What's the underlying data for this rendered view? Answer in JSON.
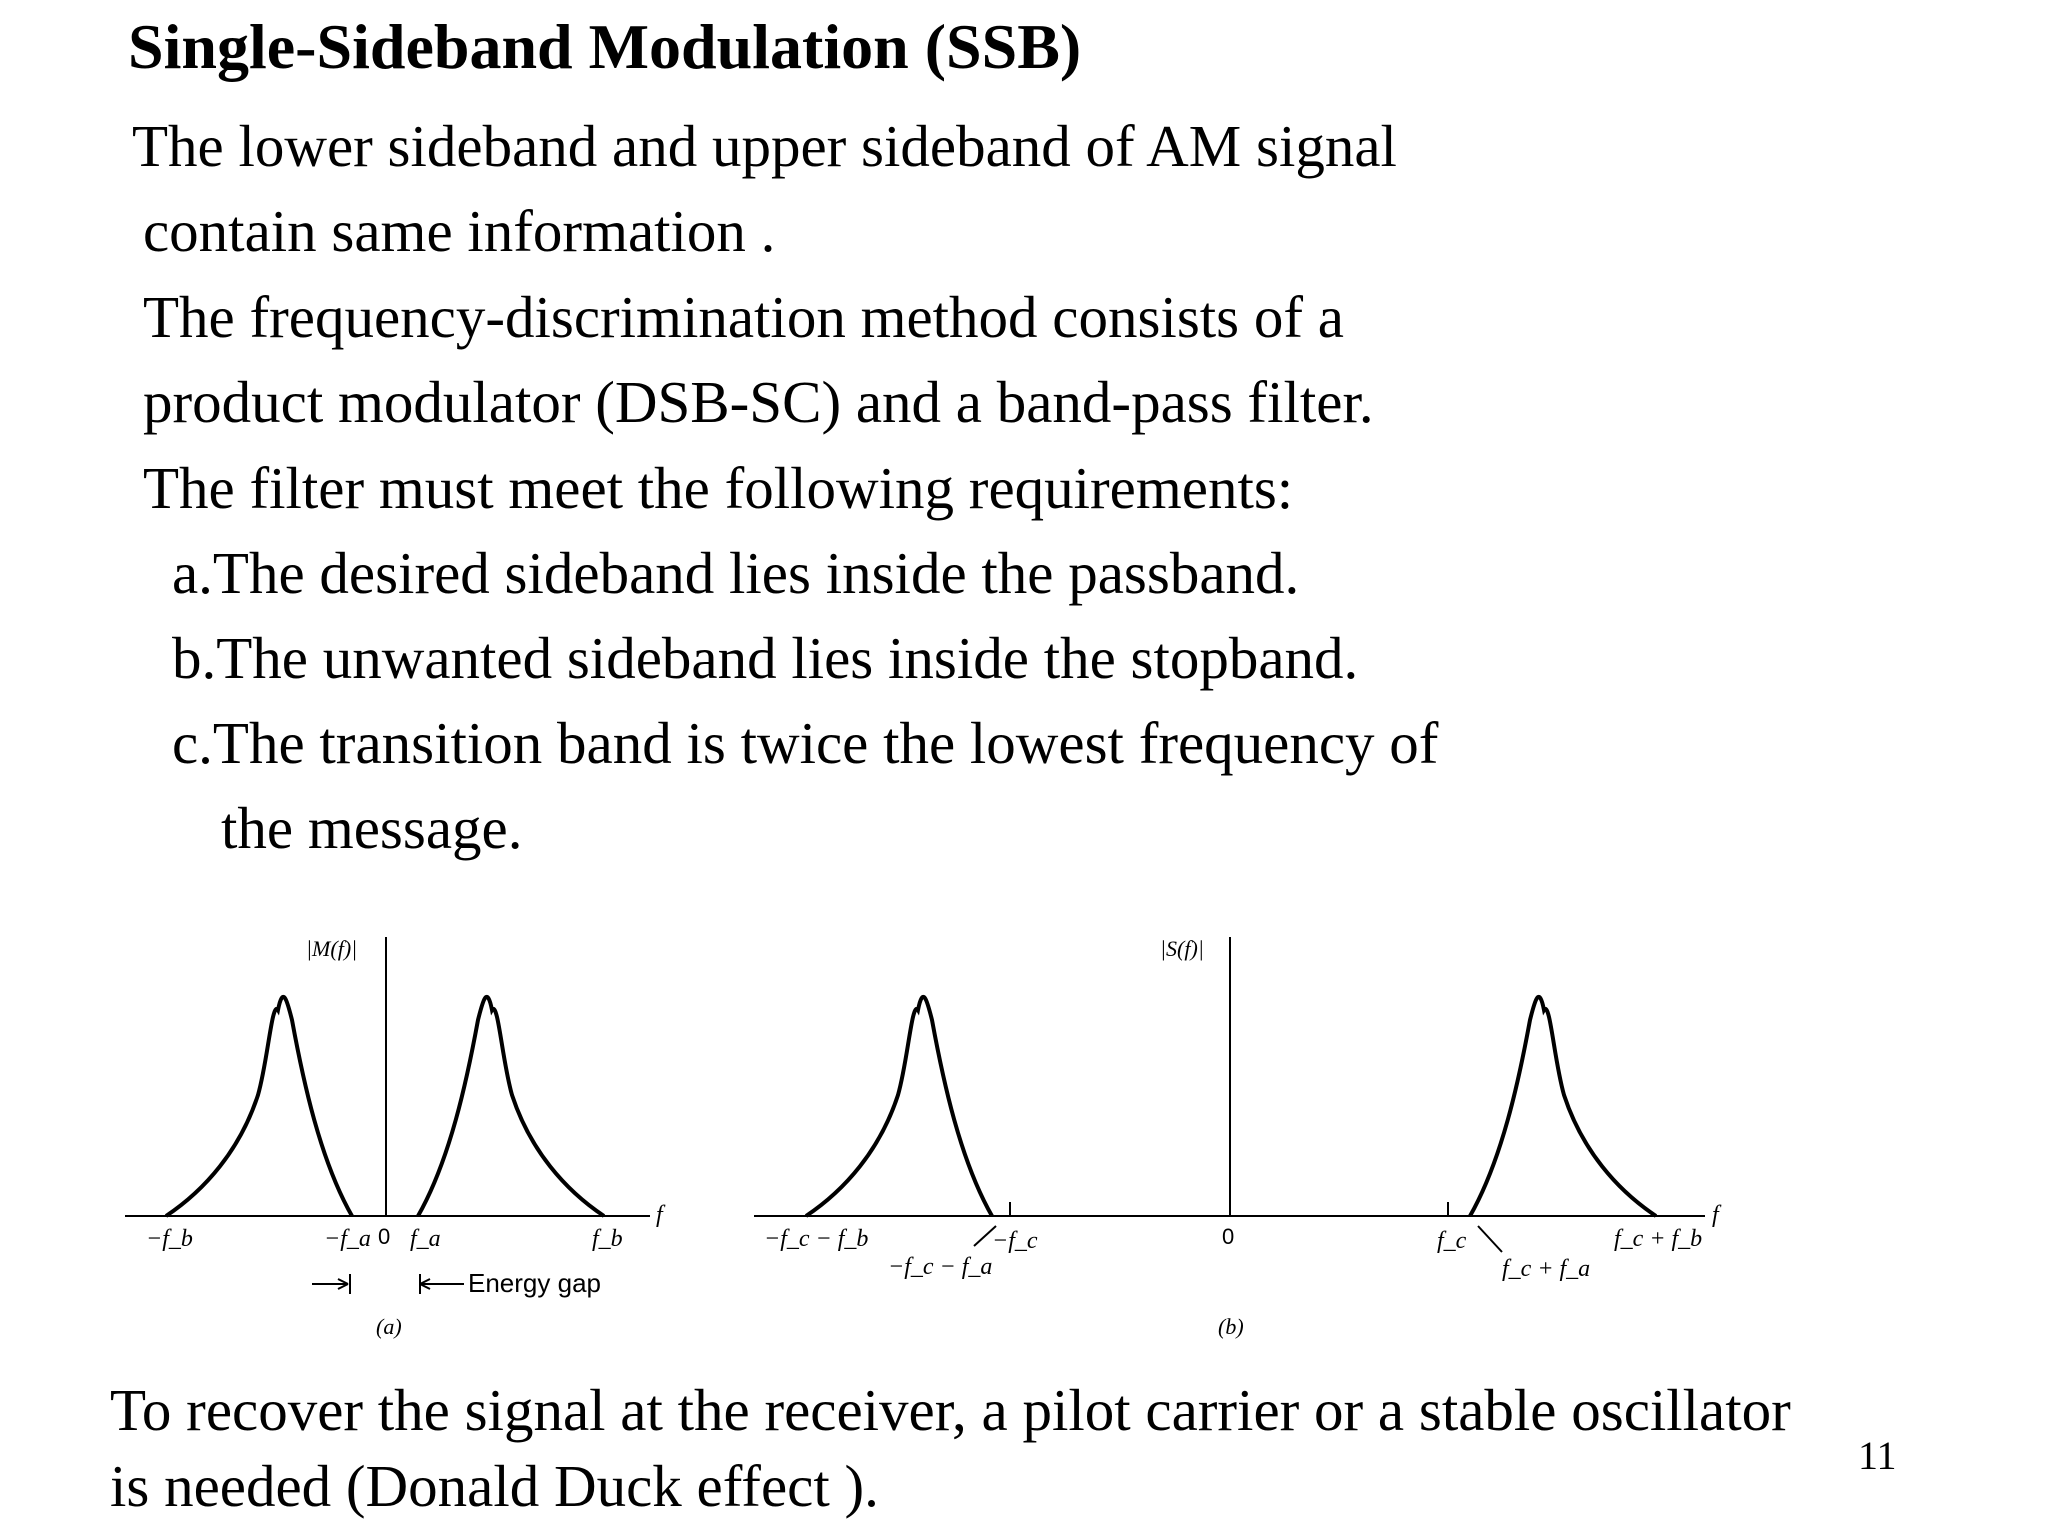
{
  "title": "Single-Sideband Modulation (SSB)",
  "paragraph": {
    "l1": "The lower sideband and upper sideband of AM signal",
    "l2": "contain same information .",
    "l3": "The frequency-discrimination method consists of a",
    "l4": "product modulator (DSB-SC) and a band-pass filter.",
    "l5": "The filter must meet the following requirements:",
    "a": "a.The desired sideband lies inside the passband.",
    "b": "b.The unwanted sideband lies inside the stopband.",
    "c1": "c.The transition band is twice the lowest frequency of",
    "c2": "the message."
  },
  "figure": {
    "a": {
      "ylabel": "|M(f)|",
      "xlabel": "f",
      "ticks": {
        "neg_fb": "−f_b",
        "neg_fa": "−f_a",
        "zero": "0",
        "fa": "f_a",
        "fb": "f_b"
      },
      "energy_gap": "Energy gap",
      "caption": "(a)"
    },
    "b": {
      "ylabel": "|S(f)|",
      "xlabel": "f",
      "ticks": {
        "neg_fc_minus_fb": "−f_c − f_b",
        "neg_fc_minus_fa": "−f_c − f_a",
        "neg_fc": "−f_c",
        "zero": "0",
        "fc": "f_c",
        "fc_plus_fa": "f_c + f_a",
        "fc_plus_fb": "f_c + f_b"
      },
      "caption": "(b)"
    }
  },
  "footer": {
    "l1": "To recover the signal at the receiver, a pilot carrier or a stable oscillator",
    "l2": "is needed (Donald Duck effect )."
  },
  "page_number": "11"
}
